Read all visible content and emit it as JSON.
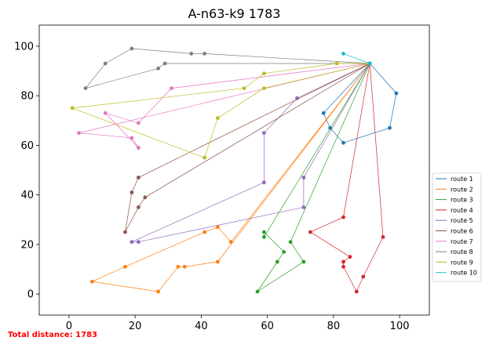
{
  "chart_data": {
    "type": "line",
    "title": "A-n63-k9 1783",
    "xlabel": "",
    "ylabel": "",
    "xlim": [
      -9,
      109
    ],
    "ylim": [
      -8.5,
      108.5
    ],
    "xticks": [
      0,
      20,
      40,
      60,
      80,
      100
    ],
    "yticks": [
      0,
      20,
      40,
      60,
      80,
      100
    ],
    "grid": false,
    "legend_position": "right",
    "depot": [
      91,
      93
    ],
    "series": [
      {
        "name": "route 1",
        "color": "#1f77b4",
        "x": [
          91,
          99,
          97,
          83,
          79,
          77,
          91
        ],
        "y": [
          93,
          81,
          67,
          61,
          67,
          73,
          93
        ]
      },
      {
        "name": "route 2",
        "color": "#ff7f0e",
        "x": [
          91,
          49,
          45,
          41,
          17,
          7,
          27,
          33,
          35,
          45,
          91
        ],
        "y": [
          93,
          21,
          27,
          25,
          11,
          5,
          1,
          11,
          11,
          13,
          93
        ]
      },
      {
        "name": "route 3",
        "color": "#2ca02c",
        "x": [
          91,
          59,
          59,
          65,
          63,
          57,
          71,
          67,
          91
        ],
        "y": [
          93,
          23,
          25,
          17,
          13,
          1,
          13,
          21,
          93
        ]
      },
      {
        "name": "route 4",
        "color": "#d62728",
        "x": [
          91,
          83,
          73,
          85,
          83,
          83,
          87,
          89,
          95,
          91
        ],
        "y": [
          93,
          31,
          25,
          15,
          13,
          11,
          1,
          7,
          23,
          93
        ]
      },
      {
        "name": "route 5",
        "color": "#9467bd",
        "x": [
          91,
          71,
          71,
          21,
          19,
          59,
          59,
          69,
          91
        ],
        "y": [
          93,
          47,
          35,
          21,
          21,
          45,
          65,
          79,
          93
        ]
      },
      {
        "name": "route 6",
        "color": "#8c564b",
        "x": [
          91,
          23,
          21,
          17,
          19,
          21,
          91
        ],
        "y": [
          93,
          39,
          35,
          25,
          41,
          47,
          93
        ]
      },
      {
        "name": "route 7",
        "color": "#e377c2",
        "x": [
          91,
          31,
          21,
          11,
          21,
          21,
          19,
          3,
          91
        ],
        "y": [
          93,
          83,
          69,
          73,
          59,
          59,
          63,
          65,
          93
        ]
      },
      {
        "name": "route 8",
        "color": "#7f7f7f",
        "x": [
          91,
          29,
          27,
          5,
          11,
          19,
          37,
          41,
          91
        ],
        "y": [
          93,
          93,
          91,
          83,
          93,
          99,
          97,
          97,
          93
        ]
      },
      {
        "name": "route 9",
        "color": "#bcbd22",
        "x": [
          91,
          81,
          59,
          53,
          1,
          41,
          45,
          59,
          91
        ],
        "y": [
          93,
          93,
          89,
          83,
          75,
          55,
          71,
          83,
          93
        ]
      },
      {
        "name": "route 10",
        "color": "#17becf",
        "x": [
          91,
          83,
          91
        ],
        "y": [
          93,
          97,
          93
        ]
      }
    ]
  },
  "footer": {
    "total_distance_label": "Total distance: 1783"
  }
}
